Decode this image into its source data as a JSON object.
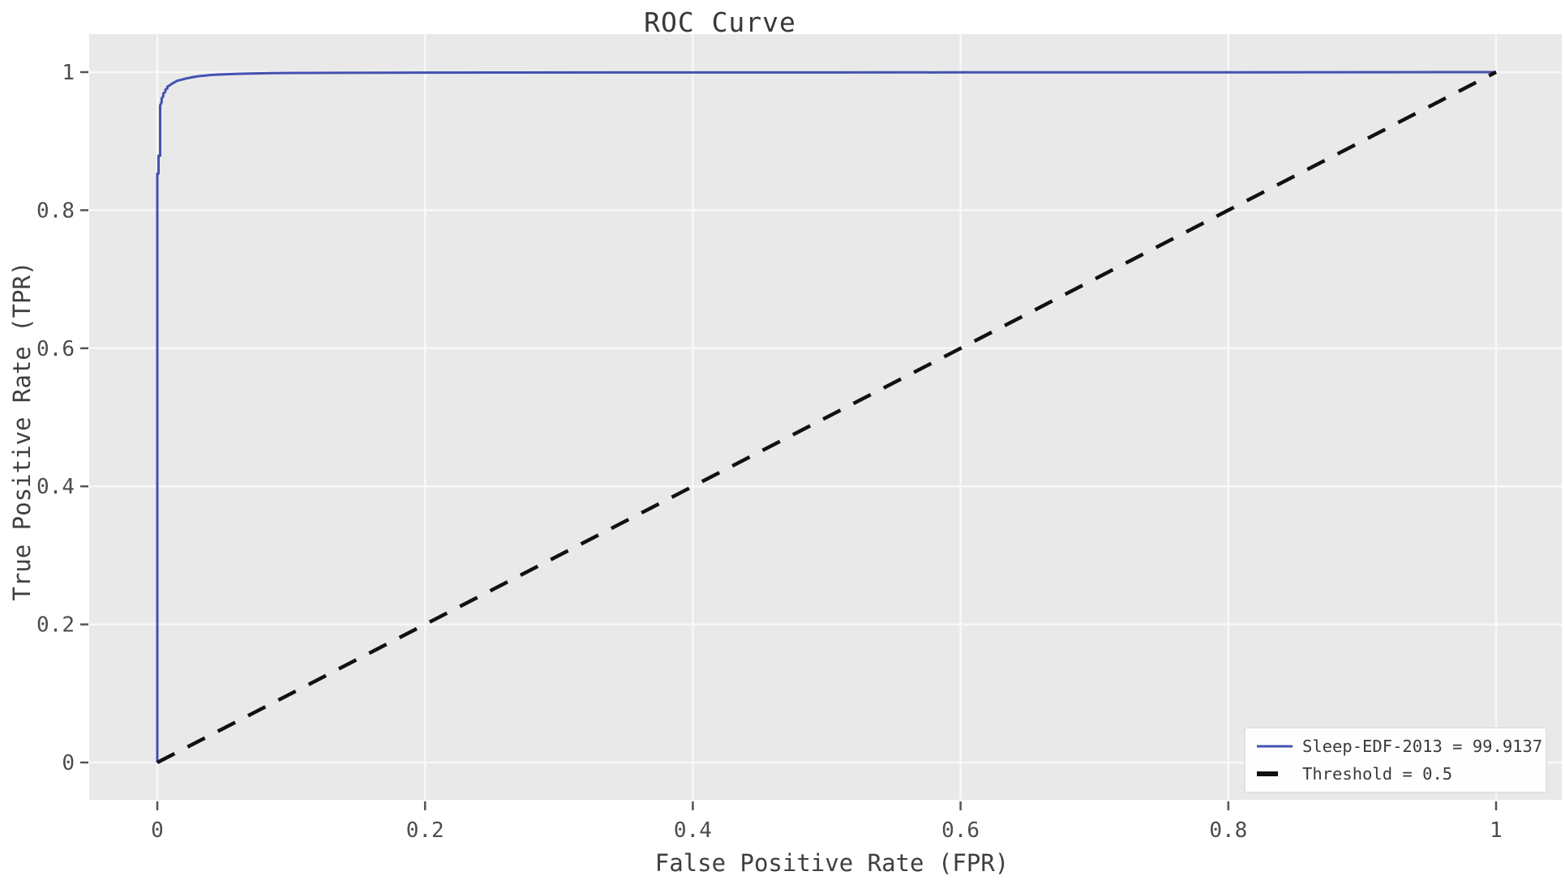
{
  "chart_data": {
    "type": "line",
    "title": "ROC Curve",
    "xlabel": "False Positive Rate (FPR)",
    "ylabel": "True Positive Rate (TPR)",
    "xlim": [
      0,
      1
    ],
    "ylim": [
      0,
      1
    ],
    "grid": true,
    "x_tick_values": [
      0,
      0.2,
      0.4,
      0.6,
      0.8,
      1
    ],
    "x_tick_labels": [
      "0",
      "0.2",
      "0.4",
      "0.6",
      "0.8",
      "1"
    ],
    "y_tick_values": [
      0,
      0.2,
      0.4,
      0.6,
      0.8,
      1
    ],
    "y_tick_labels": [
      "0",
      "0.2",
      "0.4",
      "0.6",
      "0.8",
      "1"
    ],
    "series": [
      {
        "name": "Sleep-EDF-2013 = 99.9137",
        "dataset": "Sleep-EDF-2013",
        "auc_percent": 99.9137,
        "color": "#4351af",
        "line_style": "solid",
        "line_width": 3,
        "points": [
          [
            0,
            0
          ],
          [
            0,
            0.853
          ],
          [
            0.0009,
            0.853
          ],
          [
            0.0009,
            0.879
          ],
          [
            0.0021,
            0.879
          ],
          [
            0.0021,
            0.952
          ],
          [
            0.0032,
            0.956
          ],
          [
            0.0032,
            0.962
          ],
          [
            0.0045,
            0.965
          ],
          [
            0.0045,
            0.969
          ],
          [
            0.006,
            0.9715
          ],
          [
            0.006,
            0.9745
          ],
          [
            0.0075,
            0.9765
          ],
          [
            0.0075,
            0.979
          ],
          [
            0.009,
            0.9805
          ],
          [
            0.0105,
            0.9825
          ],
          [
            0.012,
            0.9845
          ],
          [
            0.0135,
            0.986
          ],
          [
            0.015,
            0.9875
          ],
          [
            0.017,
            0.9885
          ],
          [
            0.019,
            0.9895
          ],
          [
            0.021,
            0.9905
          ],
          [
            0.0235,
            0.9915
          ],
          [
            0.026,
            0.9925
          ],
          [
            0.029,
            0.9935
          ],
          [
            0.0325,
            0.9945
          ],
          [
            0.0365,
            0.9952
          ],
          [
            0.041,
            0.996
          ],
          [
            0.046,
            0.9965
          ],
          [
            0.052,
            0.997
          ],
          [
            0.06,
            0.9975
          ],
          [
            0.07,
            0.998
          ],
          [
            0.085,
            0.9985
          ],
          [
            0.105,
            0.9988
          ],
          [
            0.13,
            0.999
          ],
          [
            0.17,
            0.9992
          ],
          [
            0.25,
            0.9994
          ],
          [
            0.4,
            0.9995
          ],
          [
            0.6,
            0.9996
          ],
          [
            0.8,
            0.9997
          ],
          [
            1,
            1
          ]
        ]
      },
      {
        "name": "Threshold = 0.5",
        "threshold": 0.5,
        "color": "#111111",
        "line_style": "dashed",
        "line_width": 4.5,
        "points": [
          [
            0,
            0
          ],
          [
            1,
            1
          ]
        ]
      }
    ],
    "legend_position": "lower right"
  },
  "legend": {
    "items": [
      {
        "swatch_dash": "none",
        "swatch_width": "3"
      },
      {
        "swatch_dash": "26 100",
        "swatch_width": "6"
      }
    ]
  },
  "colors": {
    "plot_bg": "#e9e9e9",
    "grid": "#f8f8f8",
    "tick": "#555555",
    "curve": "#4351af",
    "diagonal": "#111111",
    "legend_bg": "#ffffff",
    "legend_border": "#e2e2e2"
  }
}
